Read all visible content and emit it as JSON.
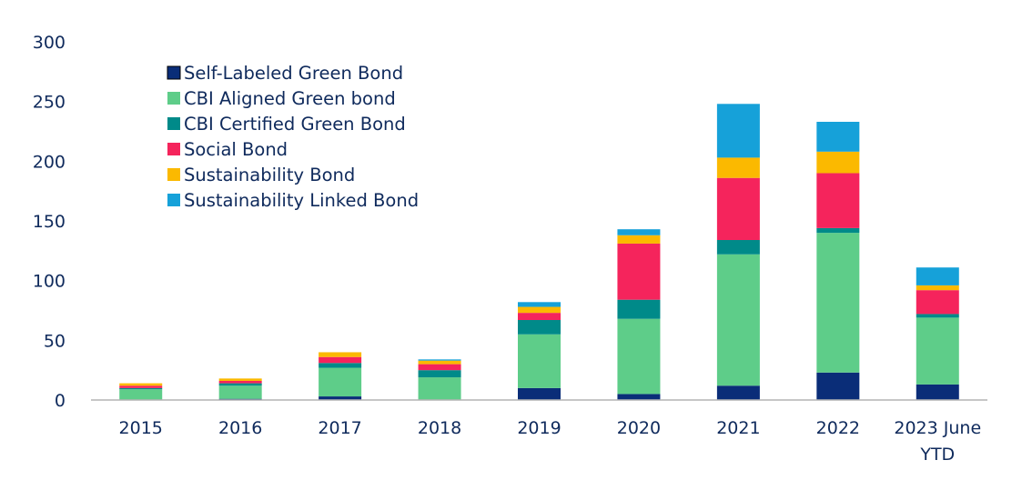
{
  "chart_data": {
    "type": "bar",
    "stacked": true,
    "categories": [
      "2015",
      "2016",
      "2017",
      "2018",
      "2019",
      "2020",
      "2021",
      "2022",
      "2023 June YTD"
    ],
    "category_lines": [
      [
        "2015"
      ],
      [
        "2016"
      ],
      [
        "2017"
      ],
      [
        "2018"
      ],
      [
        "2019"
      ],
      [
        "2020"
      ],
      [
        "2021"
      ],
      [
        "2022"
      ],
      [
        "2023 June",
        "YTD"
      ]
    ],
    "series": [
      {
        "name": "Self-Labeled Green Bond",
        "color": "#0a2d78",
        "values": [
          0,
          1,
          3,
          0,
          10,
          5,
          12,
          23,
          13
        ]
      },
      {
        "name": "CBI Aligned Green bond",
        "color": "#5ecd89",
        "values": [
          9,
          11,
          24,
          19,
          45,
          63,
          110,
          117,
          56
        ]
      },
      {
        "name": "CBI Certified Green Bond",
        "color": "#008a89",
        "values": [
          1,
          2,
          4,
          6,
          12,
          16,
          12,
          4,
          3
        ]
      },
      {
        "name": "Social Bond",
        "color": "#f5245c",
        "values": [
          2,
          2,
          5,
          5,
          6,
          47,
          52,
          46,
          20
        ]
      },
      {
        "name": "Sustainability Bond",
        "color": "#fbb900",
        "values": [
          2,
          2,
          4,
          3,
          5,
          7,
          17,
          18,
          4
        ]
      },
      {
        "name": "Sustainability Linked Bond",
        "color": "#16a1d9",
        "values": [
          0,
          0,
          0,
          1,
          4,
          5,
          45,
          25,
          15
        ]
      }
    ],
    "yticks": [
      0,
      50,
      100,
      150,
      200,
      250,
      300
    ],
    "ylim": [
      0,
      300
    ],
    "title": "",
    "xlabel": "",
    "ylabel": "",
    "legend_position": "top-left",
    "grid": false
  },
  "colors": {
    "text": "#0f2a5c",
    "axis": "#b3b3b3"
  }
}
